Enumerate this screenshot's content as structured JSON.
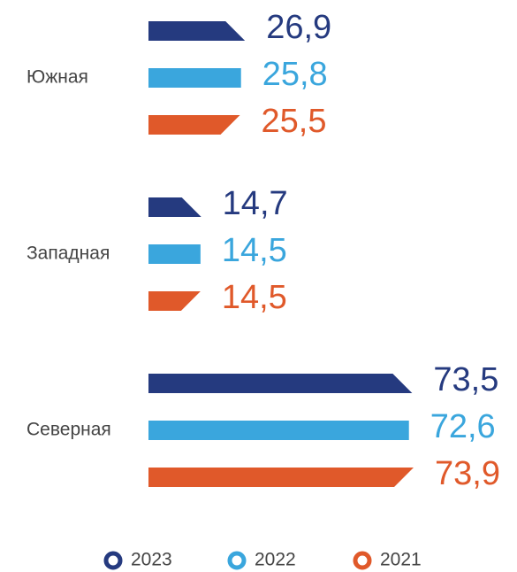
{
  "chart_data": {
    "type": "bar",
    "orientation": "horizontal",
    "categories": [
      "Южная",
      "Западная",
      "Северная"
    ],
    "series": [
      {
        "name": "2023",
        "color": "#253a7f",
        "values": [
          26.9,
          14.7,
          73.5
        ],
        "value_labels": [
          "26,9",
          "14,7",
          "73,5"
        ]
      },
      {
        "name": "2022",
        "color": "#3aa6dd",
        "values": [
          25.8,
          14.5,
          72.6
        ],
        "value_labels": [
          "25,8",
          "14,5",
          "72,6"
        ]
      },
      {
        "name": "2021",
        "color": "#e0592a",
        "values": [
          25.5,
          14.5,
          73.9
        ],
        "value_labels": [
          "25,5",
          "14,5",
          "73,9"
        ]
      }
    ],
    "legend": "bottom"
  }
}
